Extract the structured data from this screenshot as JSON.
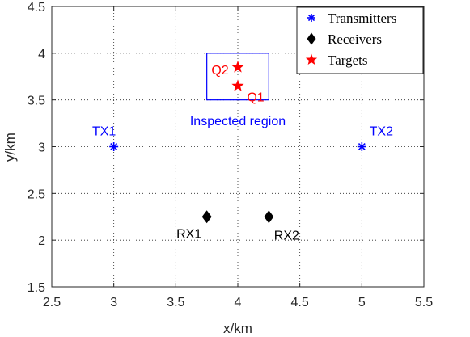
{
  "chart_data": {
    "type": "scatter",
    "xlabel": "x/km",
    "ylabel": "y/km",
    "xlim": [
      2.5,
      5.5
    ],
    "ylim": [
      1.5,
      4.5
    ],
    "xticks": [
      "2.5",
      "3",
      "3.5",
      "4",
      "4.5",
      "5",
      "5.5"
    ],
    "yticks": [
      "1.5",
      "2",
      "2.5",
      "3",
      "3.5",
      "4",
      "4.5"
    ],
    "grid": true,
    "grid_style": "dotted",
    "legend_position": "top-right",
    "series": [
      {
        "name": "Transmitters",
        "marker": "asterisk",
        "color": "#0000ff",
        "points": [
          {
            "label": "TX1",
            "x": 3.0,
            "y": 3.0
          },
          {
            "label": "TX2",
            "x": 5.0,
            "y": 3.0
          }
        ]
      },
      {
        "name": "Receivers",
        "marker": "diamond",
        "color": "#000000",
        "points": [
          {
            "label": "RX1",
            "x": 3.75,
            "y": 2.25
          },
          {
            "label": "RX2",
            "x": 4.25,
            "y": 2.25
          }
        ]
      },
      {
        "name": "Targets",
        "marker": "star",
        "color": "#ff0000",
        "points": [
          {
            "label": "Q2",
            "x": 4.0,
            "y": 3.85
          },
          {
            "label": "Q1",
            "x": 4.0,
            "y": 3.65
          }
        ]
      }
    ],
    "region": {
      "label": "Inspected region",
      "color": "#0000ff",
      "x": [
        3.75,
        4.25
      ],
      "y": [
        3.5,
        4.0
      ]
    }
  }
}
